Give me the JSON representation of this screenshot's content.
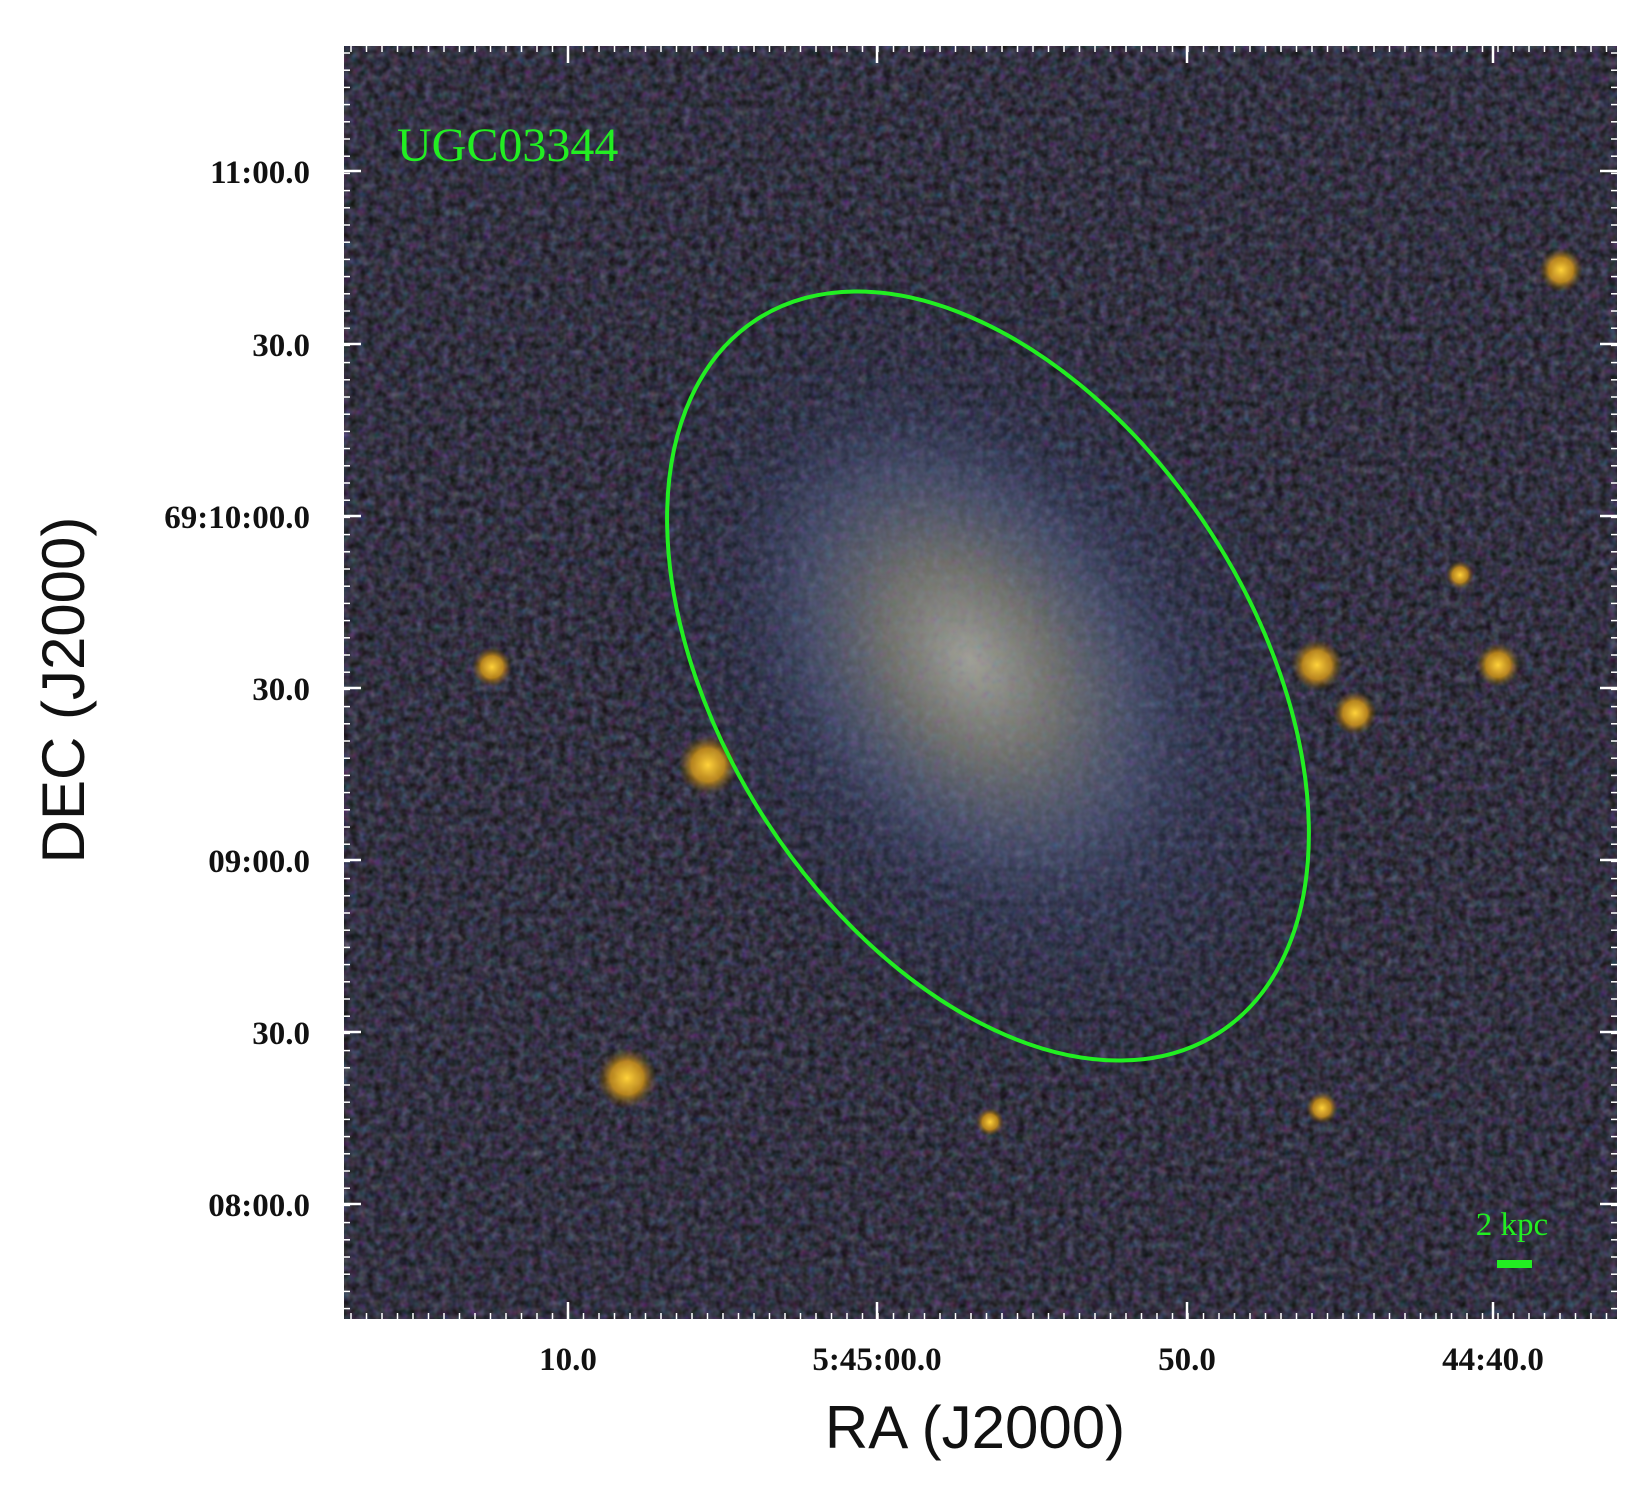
{
  "image": {
    "object_label": "UGC03344",
    "label_color": "#22ee22",
    "aperture_color": "#22ee22",
    "sky_color": "#0d0d07",
    "galaxy_colors": [
      "#8a8f78",
      "#6f6a46",
      "#3c4a6e"
    ],
    "star_color": "#e6b21e"
  },
  "scale_bar": {
    "label": "2 kpc",
    "color": "#22ee22"
  },
  "axes": {
    "x_title": "RA (J2000)",
    "y_title": "DEC (J2000)",
    "x_ticks": [
      "10.0",
      "5:45:00.0",
      "50.0",
      "44:40.0"
    ],
    "y_ticks": [
      "11:00.0",
      "30.0",
      "69:10:00.0",
      "30.0",
      "09:00.0",
      "30.0",
      "08:00.0"
    ]
  }
}
